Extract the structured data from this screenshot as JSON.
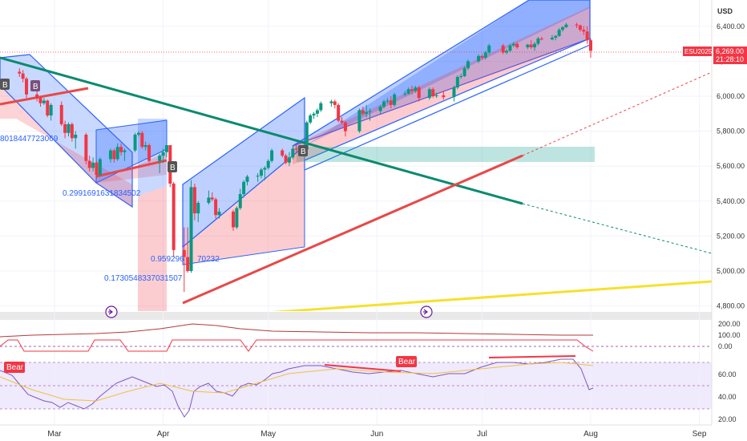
{
  "currency": "USD",
  "symbol": "ESU2025",
  "last_price": "6,269.00",
  "countdown": "21:28:10",
  "colors": {
    "up": "#26a69a",
    "down": "#ef5350",
    "upCandle": "#089981",
    "downCandle": "#f23645",
    "channel_blue": "rgba(41,98,255,0.28)",
    "channel_red": "rgba(242,54,69,0.25)",
    "teal_line": "#0b8a6e",
    "red_line": "#e84848",
    "yellow_line": "#f5e12c",
    "accent": "#2962ff"
  },
  "annotations": {
    "a1": "8018447723069",
    "a2": "0.2991691631834502",
    "a3": "0.959296",
    "a3b": "70232",
    "a4": "0.1730548337031507",
    "bear1": "Bear",
    "bear2": "Bear",
    "b1": "B",
    "b2": "B",
    "b3": "B",
    "b4": "B"
  },
  "chart_data": [
    {
      "type": "line",
      "panel": "price",
      "ylim": [
        4750,
        6550
      ],
      "yticks": [
        "6,400.00",
        "6,200.00",
        "6,000.00",
        "5,800.00",
        "5,600.00",
        "5,400.00",
        "5,200.00",
        "5,000.00",
        "4,800.00"
      ],
      "yticks_values": [
        6400,
        6200,
        6000,
        5800,
        5600,
        5400,
        5200,
        5000,
        4800
      ],
      "x_months": [
        "Mar",
        "Apr",
        "May",
        "Jun",
        "Jul",
        "Aug",
        "Sep"
      ],
      "candles": [
        [
          "02-19",
          6140,
          6160,
          6110,
          6130
        ],
        [
          "02-20",
          6130,
          6150,
          6080,
          6100
        ],
        [
          "02-21",
          6100,
          6110,
          5990,
          6010
        ],
        [
          "02-24",
          6010,
          6030,
          5970,
          5990
        ],
        [
          "02-25",
          5990,
          6000,
          5940,
          5960
        ],
        [
          "02-26",
          5960,
          5990,
          5950,
          5975
        ],
        [
          "02-27",
          5975,
          5980,
          5880,
          5890
        ],
        [
          "02-28",
          5890,
          5960,
          5860,
          5950
        ],
        [
          "03-03",
          5950,
          5970,
          5830,
          5840
        ],
        [
          "03-04",
          5840,
          5860,
          5760,
          5790
        ],
        [
          "03-05",
          5790,
          5850,
          5770,
          5840
        ],
        [
          "03-06",
          5840,
          5850,
          5740,
          5760
        ],
        [
          "03-07",
          5760,
          5800,
          5700,
          5780
        ],
        [
          "03-10",
          5780,
          5790,
          5610,
          5630
        ],
        [
          "03-11",
          5630,
          5660,
          5570,
          5590
        ],
        [
          "03-12",
          5590,
          5650,
          5570,
          5620
        ],
        [
          "03-13",
          5620,
          5630,
          5530,
          5550
        ],
        [
          "03-14",
          5550,
          5650,
          5540,
          5640
        ],
        [
          "03-17",
          5640,
          5700,
          5620,
          5690
        ],
        [
          "03-18",
          5690,
          5700,
          5620,
          5640
        ],
        [
          "03-19",
          5640,
          5730,
          5630,
          5710
        ],
        [
          "03-20",
          5710,
          5730,
          5660,
          5680
        ],
        [
          "03-21",
          5680,
          5700,
          5630,
          5690
        ],
        [
          "03-24",
          5690,
          5790,
          5680,
          5780
        ],
        [
          "03-25",
          5780,
          5800,
          5770,
          5790
        ],
        [
          "03-26",
          5790,
          5800,
          5700,
          5710
        ],
        [
          "03-27",
          5710,
          5740,
          5690,
          5720
        ],
        [
          "03-28",
          5720,
          5730,
          5620,
          5630
        ],
        [
          "03-31",
          5630,
          5670,
          5560,
          5660
        ],
        [
          "04-01",
          5660,
          5700,
          5620,
          5680
        ],
        [
          "04-02",
          5680,
          5730,
          5650,
          5720
        ],
        [
          "04-03",
          5720,
          5720,
          5480,
          5500
        ],
        [
          "04-04",
          5500,
          5510,
          5080,
          5120
        ],
        [
          "04-07",
          5120,
          5250,
          4880,
          5080
        ],
        [
          "04-08",
          5080,
          5250,
          4990,
          5000
        ],
        [
          "04-09",
          5000,
          5520,
          4990,
          5480
        ],
        [
          "04-10",
          5480,
          5500,
          5290,
          5330
        ],
        [
          "04-11",
          5330,
          5400,
          5280,
          5390
        ],
        [
          "04-14",
          5390,
          5460,
          5380,
          5420
        ],
        [
          "04-15",
          5420,
          5450,
          5400,
          5410
        ],
        [
          "04-16",
          5410,
          5420,
          5300,
          5320
        ],
        [
          "04-17",
          5320,
          5360,
          5300,
          5340
        ],
        [
          "04-21",
          5340,
          5350,
          5230,
          5250
        ],
        [
          "04-22",
          5250,
          5370,
          5240,
          5360
        ],
        [
          "04-23",
          5360,
          5470,
          5350,
          5440
        ],
        [
          "04-24",
          5440,
          5520,
          5420,
          5510
        ],
        [
          "04-25",
          5510,
          5550,
          5490,
          5540
        ],
        [
          "04-28",
          5540,
          5560,
          5510,
          5545
        ],
        [
          "04-29",
          5545,
          5590,
          5530,
          5580
        ],
        [
          "04-30",
          5580,
          5600,
          5520,
          5590
        ],
        [
          "05-01",
          5590,
          5640,
          5580,
          5630
        ],
        [
          "05-02",
          5630,
          5700,
          5620,
          5690
        ],
        [
          "05-05",
          5690,
          5700,
          5650,
          5660
        ],
        [
          "05-06",
          5660,
          5670,
          5610,
          5620
        ],
        [
          "05-07",
          5620,
          5680,
          5600,
          5650
        ],
        [
          "05-08",
          5650,
          5720,
          5640,
          5700
        ],
        [
          "05-09",
          5700,
          5720,
          5680,
          5695
        ],
        [
          "05-12",
          5695,
          5860,
          5690,
          5850
        ],
        [
          "05-13",
          5850,
          5900,
          5840,
          5890
        ],
        [
          "05-14",
          5890,
          5910,
          5870,
          5900
        ],
        [
          "05-15",
          5900,
          5930,
          5880,
          5920
        ],
        [
          "05-16",
          5920,
          5970,
          5910,
          5960
        ],
        [
          "05-19",
          5960,
          5980,
          5940,
          5970
        ],
        [
          "05-20",
          5970,
          5980,
          5930,
          5950
        ],
        [
          "05-21",
          5950,
          5960,
          5850,
          5860
        ],
        [
          "05-22",
          5860,
          5880,
          5840,
          5850
        ],
        [
          "05-23",
          5850,
          5860,
          5770,
          5800
        ],
        [
          "05-27",
          5800,
          5930,
          5790,
          5920
        ],
        [
          "05-28",
          5920,
          5940,
          5890,
          5900
        ],
        [
          "05-29",
          5900,
          5950,
          5880,
          5910
        ],
        [
          "05-30",
          5910,
          5930,
          5860,
          5915
        ],
        [
          "06-02",
          5915,
          5950,
          5900,
          5940
        ],
        [
          "06-03",
          5940,
          5980,
          5930,
          5970
        ],
        [
          "06-04",
          5970,
          5990,
          5960,
          5975
        ],
        [
          "06-05",
          5975,
          6000,
          5930,
          5950
        ],
        [
          "06-06",
          5950,
          6020,
          5940,
          6010
        ],
        [
          "06-09",
          6010,
          6030,
          6000,
          6015
        ],
        [
          "06-10",
          6015,
          6050,
          6010,
          6040
        ],
        [
          "06-11",
          6040,
          6060,
          6010,
          6030
        ],
        [
          "06-12",
          6030,
          6060,
          6020,
          6050
        ],
        [
          "06-13",
          6050,
          6060,
          5970,
          5990
        ],
        [
          "06-16",
          5990,
          6050,
          5980,
          6040
        ],
        [
          "06-17",
          6040,
          6050,
          5990,
          6000
        ],
        [
          "06-18",
          6000,
          6020,
          5990,
          6005
        ],
        [
          "06-20",
          6005,
          6030,
          5980,
          5995
        ],
        [
          "06-23",
          5995,
          6060,
          5970,
          6050
        ],
        [
          "06-24",
          6050,
          6120,
          6040,
          6110
        ],
        [
          "06-25",
          6110,
          6130,
          6100,
          6115
        ],
        [
          "06-26",
          6115,
          6170,
          6110,
          6160
        ],
        [
          "06-27",
          6160,
          6210,
          6150,
          6200
        ],
        [
          "06-30",
          6200,
          6240,
          6190,
          6230
        ],
        [
          "07-01",
          6230,
          6240,
          6210,
          6220
        ],
        [
          "07-02",
          6220,
          6260,
          6210,
          6250
        ],
        [
          "07-03",
          6250,
          6300,
          6240,
          6290
        ],
        [
          "07-07",
          6290,
          6300,
          6240,
          6250
        ],
        [
          "07-08",
          6250,
          6270,
          6240,
          6260
        ],
        [
          "07-09",
          6260,
          6300,
          6250,
          6290
        ],
        [
          "07-10",
          6290,
          6310,
          6280,
          6300
        ],
        [
          "07-11",
          6300,
          6310,
          6270,
          6280
        ],
        [
          "07-14",
          6280,
          6300,
          6270,
          6295
        ],
        [
          "07-15",
          6295,
          6320,
          6270,
          6280
        ],
        [
          "07-16",
          6280,
          6310,
          6260,
          6300
        ],
        [
          "07-17",
          6300,
          6340,
          6290,
          6330
        ],
        [
          "07-18",
          6330,
          6340,
          6320,
          6325
        ],
        [
          "07-21",
          6325,
          6350,
          6320,
          6335
        ],
        [
          "07-22",
          6335,
          6350,
          6320,
          6345
        ],
        [
          "07-23",
          6345,
          6390,
          6340,
          6380
        ],
        [
          "07-24",
          6380,
          6400,
          6370,
          6395
        ],
        [
          "07-25",
          6395,
          6420,
          6390,
          6410
        ],
        [
          "07-28",
          6410,
          6420,
          6390,
          6405
        ],
        [
          "07-29",
          6405,
          6410,
          6370,
          6380
        ],
        [
          "07-30",
          6380,
          6400,
          6350,
          6370
        ],
        [
          "07-31",
          6370,
          6400,
          6300,
          6320
        ],
        [
          "08-01",
          6320,
          6330,
          6220,
          6260
        ]
      ]
    },
    {
      "type": "line",
      "panel": "indicator-1",
      "yticks": [
        "200.00",
        "100.00",
        "0.00"
      ],
      "yticks_values": [
        200,
        100,
        0
      ]
    },
    {
      "type": "line",
      "panel": "rsi",
      "ylim": [
        15,
        75
      ],
      "yticks": [
        "60.00",
        "40.00",
        "20.00"
      ],
      "yticks_values": [
        60,
        40,
        20
      ]
    }
  ]
}
